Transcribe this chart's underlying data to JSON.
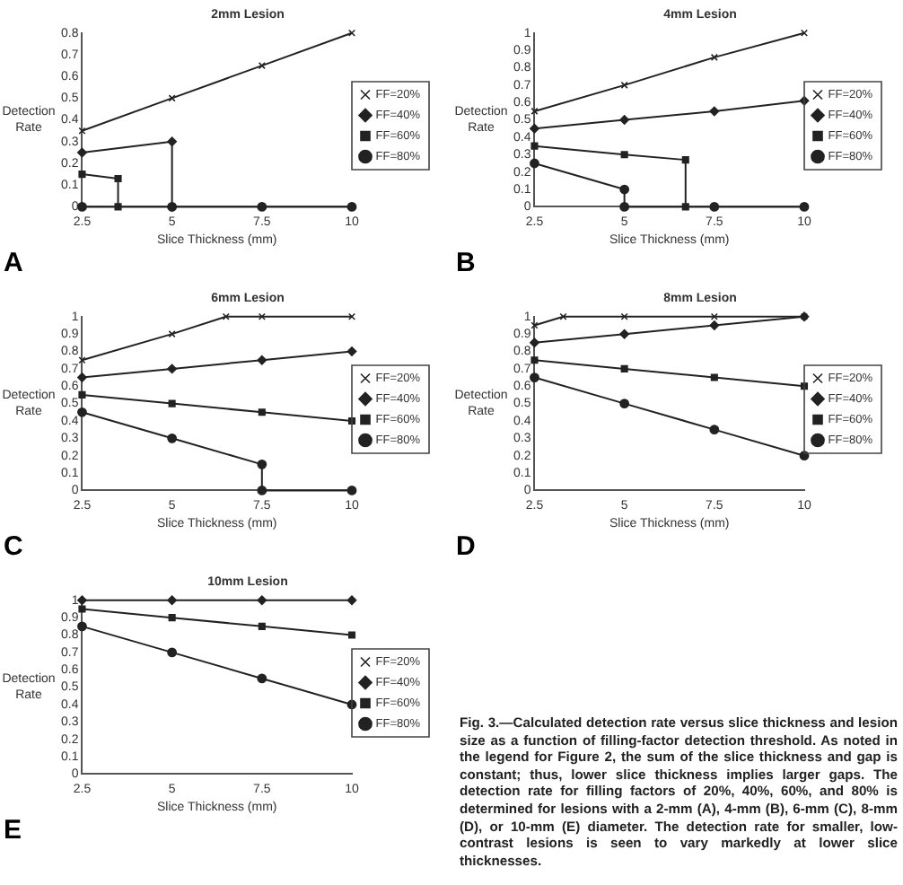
{
  "chart_data": [
    {
      "type": "line",
      "title": "2mm Lesion",
      "xlabel": "Slice Thickness (mm)",
      "ylabel": "Detection Rate",
      "xlim": [
        2.5,
        10
      ],
      "xticks": [
        2.5,
        5,
        7.5,
        10
      ],
      "ylim": [
        0,
        0.8
      ],
      "yticks": [
        0,
        0.1,
        0.2,
        0.3,
        0.4,
        0.5,
        0.6,
        0.7,
        0.8
      ],
      "grid": false,
      "legend": "right",
      "annotations": [
        "A"
      ],
      "series": [
        {
          "name": "FF=20%",
          "color": "#222222",
          "marker": "cross",
          "x": [
            2.5,
            5,
            7.5,
            10
          ],
          "values": [
            0.35,
            0.5,
            0.65,
            0.8
          ]
        },
        {
          "name": "FF=40%",
          "color": "#222222",
          "marker": "diamond",
          "x": [
            2.5,
            5,
            5
          ],
          "values": [
            0.25,
            0.3,
            0
          ]
        },
        {
          "name": "FF=60%",
          "color": "#222222",
          "marker": "square",
          "x": [
            2.5,
            3.5,
            3.5
          ],
          "values": [
            0.15,
            0.13,
            0
          ]
        },
        {
          "name": "FF=80%",
          "color": "#222222",
          "marker": "circle",
          "x": [
            2.5,
            5,
            7.5,
            10
          ],
          "values": [
            0,
            0,
            0,
            0
          ]
        }
      ]
    },
    {
      "type": "line",
      "title": "4mm Lesion",
      "xlabel": "Slice Thickness (mm)",
      "ylabel": "Detection Rate",
      "xlim": [
        2.5,
        10
      ],
      "xticks": [
        2.5,
        5,
        7.5,
        10
      ],
      "ylim": [
        0,
        1
      ],
      "yticks": [
        0,
        0.1,
        0.2,
        0.3,
        0.4,
        0.5,
        0.6,
        0.7,
        0.8,
        0.9,
        1
      ],
      "grid": false,
      "legend": "right",
      "annotations": [
        "B"
      ],
      "series": [
        {
          "name": "FF=20%",
          "color": "#222222",
          "marker": "cross",
          "x": [
            2.5,
            5,
            7.5,
            10
          ],
          "values": [
            0.55,
            0.7,
            0.86,
            1
          ]
        },
        {
          "name": "FF=40%",
          "color": "#222222",
          "marker": "diamond",
          "x": [
            2.5,
            5,
            7.5,
            10
          ],
          "values": [
            0.45,
            0.5,
            0.55,
            0.61
          ]
        },
        {
          "name": "FF=60%",
          "color": "#222222",
          "marker": "square",
          "x": [
            2.5,
            5,
            6.7,
            6.7
          ],
          "values": [
            0.35,
            0.3,
            0.27,
            0
          ]
        },
        {
          "name": "FF=80%",
          "color": "#222222",
          "marker": "circle",
          "x": [
            2.5,
            5,
            5,
            7.5,
            10
          ],
          "values": [
            0.25,
            0.1,
            0,
            0,
            0
          ]
        }
      ]
    },
    {
      "type": "line",
      "title": "6mm Lesion",
      "xlabel": "Slice Thickness (mm)",
      "ylabel": "Detection Rate",
      "xlim": [
        2.5,
        10
      ],
      "xticks": [
        2.5,
        5,
        7.5,
        10
      ],
      "ylim": [
        0,
        1
      ],
      "yticks": [
        0,
        0.1,
        0.2,
        0.3,
        0.4,
        0.5,
        0.6,
        0.7,
        0.8,
        0.9,
        1
      ],
      "grid": false,
      "legend": "right",
      "annotations": [
        "C"
      ],
      "series": [
        {
          "name": "FF=20%",
          "color": "#222222",
          "marker": "cross",
          "x": [
            2.5,
            5,
            6.5,
            7.5,
            10
          ],
          "values": [
            0.75,
            0.9,
            1,
            1,
            1
          ]
        },
        {
          "name": "FF=40%",
          "color": "#222222",
          "marker": "diamond",
          "x": [
            2.5,
            5,
            7.5,
            10
          ],
          "values": [
            0.65,
            0.7,
            0.75,
            0.8
          ]
        },
        {
          "name": "FF=60%",
          "color": "#222222",
          "marker": "square",
          "x": [
            2.5,
            5,
            7.5,
            10
          ],
          "values": [
            0.55,
            0.5,
            0.45,
            0.4
          ]
        },
        {
          "name": "FF=80%",
          "color": "#222222",
          "marker": "circle",
          "x": [
            2.5,
            5,
            7.5,
            7.5,
            10
          ],
          "values": [
            0.45,
            0.3,
            0.15,
            0,
            0
          ]
        }
      ]
    },
    {
      "type": "line",
      "title": "8mm Lesion",
      "xlabel": "Slice Thickness (mm)",
      "ylabel": "Detection Rate",
      "xlim": [
        2.5,
        10
      ],
      "xticks": [
        2.5,
        5,
        7.5,
        10
      ],
      "ylim": [
        0,
        1
      ],
      "yticks": [
        0,
        0.1,
        0.2,
        0.3,
        0.4,
        0.5,
        0.6,
        0.7,
        0.8,
        0.9,
        1
      ],
      "grid": false,
      "legend": "right",
      "annotations": [
        "D"
      ],
      "series": [
        {
          "name": "FF=20%",
          "color": "#222222",
          "marker": "cross",
          "x": [
            2.5,
            3.3,
            5,
            7.5,
            10
          ],
          "values": [
            0.95,
            1,
            1,
            1,
            1
          ]
        },
        {
          "name": "FF=40%",
          "color": "#222222",
          "marker": "diamond",
          "x": [
            2.5,
            5,
            7.5,
            10
          ],
          "values": [
            0.85,
            0.9,
            0.95,
            1
          ]
        },
        {
          "name": "FF=60%",
          "color": "#222222",
          "marker": "square",
          "x": [
            2.5,
            5,
            7.5,
            10
          ],
          "values": [
            0.75,
            0.7,
            0.65,
            0.6
          ]
        },
        {
          "name": "FF=80%",
          "color": "#222222",
          "marker": "circle",
          "x": [
            2.5,
            5,
            7.5,
            10
          ],
          "values": [
            0.65,
            0.5,
            0.35,
            0.2
          ]
        }
      ]
    },
    {
      "type": "line",
      "title": "10mm Lesion",
      "xlabel": "Slice Thickness (mm)",
      "ylabel": "Detection Rate",
      "xlim": [
        2.5,
        10
      ],
      "xticks": [
        2.5,
        5,
        7.5,
        10
      ],
      "ylim": [
        0,
        1
      ],
      "yticks": [
        0,
        0.1,
        0.2,
        0.3,
        0.4,
        0.5,
        0.6,
        0.7,
        0.8,
        0.9,
        1
      ],
      "grid": false,
      "legend": "right",
      "annotations": [
        "E"
      ],
      "series": [
        {
          "name": "FF=20%",
          "color": "#222222",
          "marker": "cross",
          "values": [
            null,
            null,
            null,
            null
          ]
        },
        {
          "name": "FF=40%",
          "color": "#222222",
          "marker": "diamond",
          "x": [
            2.5,
            5,
            7.5,
            10
          ],
          "values": [
            1,
            1,
            1,
            1
          ]
        },
        {
          "name": "FF=60%",
          "color": "#222222",
          "marker": "square",
          "x": [
            2.5,
            5,
            7.5,
            10
          ],
          "values": [
            0.95,
            0.9,
            0.85,
            0.8
          ]
        },
        {
          "name": "FF=80%",
          "color": "#222222",
          "marker": "circle",
          "x": [
            2.5,
            5,
            7.5,
            10
          ],
          "values": [
            0.85,
            0.7,
            0.55,
            0.4
          ]
        }
      ]
    },
    {
      "type": "other",
      "annotations": [
        "Fig. 3.—Calculated detection rate versus slice thickness and lesion size as a function of filling-factor detection threshold. As noted in the legend for Figure 2, the sum of the slice thickness and gap is constant; thus, lower slice thickness implies larger gaps. The detection rate for filling factors of 20%, 40%, 60%, and 80% is determined for lesions with a 2-mm (A), 4-mm (B), 6-mm (C), 8-mm (D), or 10-mm (E) diameter. The detection rate for smaller, low-contrast lesions is seen to vary markedly at lower slice thicknesses."
      ]
    }
  ]
}
